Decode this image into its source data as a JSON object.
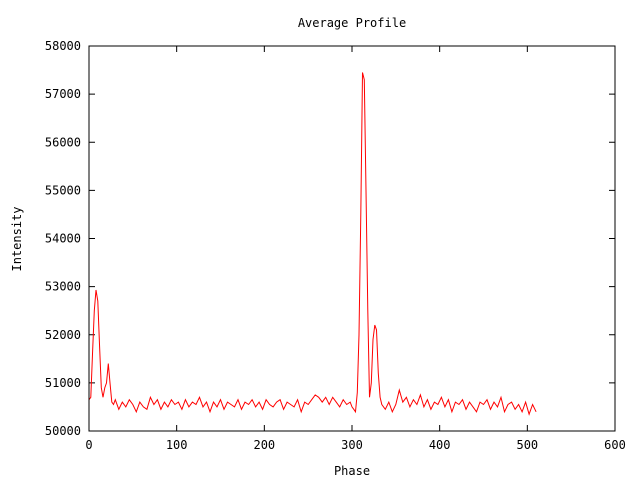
{
  "chart_data": {
    "type": "line",
    "title": "Average Profile",
    "xlabel": "Phase",
    "ylabel": "Intensity",
    "xlim": [
      0,
      600
    ],
    "ylim": [
      50000,
      58000
    ],
    "xticks": [
      0,
      100,
      200,
      300,
      400,
      500,
      600
    ],
    "yticks": [
      50000,
      51000,
      52000,
      53000,
      54000,
      55000,
      56000,
      57000,
      58000
    ],
    "grid": false,
    "legend": "none",
    "series": [
      {
        "name": "Average Profile",
        "color": "#ff0000",
        "points": [
          [
            0,
            50650
          ],
          [
            2,
            50700
          ],
          [
            4,
            51600
          ],
          [
            6,
            52500
          ],
          [
            8,
            52930
          ],
          [
            10,
            52700
          ],
          [
            12,
            51800
          ],
          [
            14,
            50900
          ],
          [
            16,
            50700
          ],
          [
            18,
            50900
          ],
          [
            20,
            51000
          ],
          [
            22,
            51400
          ],
          [
            24,
            51000
          ],
          [
            26,
            50600
          ],
          [
            28,
            50550
          ],
          [
            30,
            50650
          ],
          [
            34,
            50450
          ],
          [
            38,
            50600
          ],
          [
            42,
            50500
          ],
          [
            46,
            50650
          ],
          [
            50,
            50550
          ],
          [
            54,
            50400
          ],
          [
            58,
            50600
          ],
          [
            62,
            50500
          ],
          [
            66,
            50450
          ],
          [
            70,
            50700
          ],
          [
            74,
            50550
          ],
          [
            78,
            50650
          ],
          [
            82,
            50450
          ],
          [
            86,
            50600
          ],
          [
            90,
            50500
          ],
          [
            94,
            50650
          ],
          [
            98,
            50550
          ],
          [
            102,
            50600
          ],
          [
            106,
            50450
          ],
          [
            110,
            50650
          ],
          [
            114,
            50500
          ],
          [
            118,
            50600
          ],
          [
            122,
            50550
          ],
          [
            126,
            50700
          ],
          [
            130,
            50500
          ],
          [
            134,
            50600
          ],
          [
            138,
            50400
          ],
          [
            142,
            50600
          ],
          [
            146,
            50500
          ],
          [
            150,
            50650
          ],
          [
            154,
            50450
          ],
          [
            158,
            50600
          ],
          [
            162,
            50550
          ],
          [
            166,
            50500
          ],
          [
            170,
            50650
          ],
          [
            174,
            50450
          ],
          [
            178,
            50600
          ],
          [
            182,
            50550
          ],
          [
            186,
            50650
          ],
          [
            190,
            50500
          ],
          [
            194,
            50600
          ],
          [
            198,
            50450
          ],
          [
            202,
            50650
          ],
          [
            206,
            50550
          ],
          [
            210,
            50500
          ],
          [
            214,
            50600
          ],
          [
            218,
            50650
          ],
          [
            222,
            50450
          ],
          [
            226,
            50600
          ],
          [
            230,
            50550
          ],
          [
            234,
            50500
          ],
          [
            238,
            50650
          ],
          [
            242,
            50400
          ],
          [
            246,
            50600
          ],
          [
            250,
            50550
          ],
          [
            254,
            50650
          ],
          [
            258,
            50750
          ],
          [
            262,
            50700
          ],
          [
            266,
            50600
          ],
          [
            270,
            50700
          ],
          [
            274,
            50550
          ],
          [
            278,
            50700
          ],
          [
            282,
            50600
          ],
          [
            286,
            50500
          ],
          [
            290,
            50650
          ],
          [
            294,
            50550
          ],
          [
            298,
            50600
          ],
          [
            300,
            50500
          ],
          [
            302,
            50450
          ],
          [
            304,
            50400
          ],
          [
            306,
            50800
          ],
          [
            308,
            52000
          ],
          [
            310,
            54500
          ],
          [
            312,
            57450
          ],
          [
            314,
            57300
          ],
          [
            316,
            55000
          ],
          [
            318,
            52500
          ],
          [
            320,
            50700
          ],
          [
            322,
            51000
          ],
          [
            324,
            51900
          ],
          [
            326,
            52200
          ],
          [
            328,
            52100
          ],
          [
            330,
            51200
          ],
          [
            332,
            50700
          ],
          [
            334,
            50550
          ],
          [
            338,
            50450
          ],
          [
            342,
            50600
          ],
          [
            346,
            50400
          ],
          [
            350,
            50550
          ],
          [
            354,
            50850
          ],
          [
            358,
            50600
          ],
          [
            362,
            50700
          ],
          [
            366,
            50500
          ],
          [
            370,
            50650
          ],
          [
            374,
            50550
          ],
          [
            378,
            50750
          ],
          [
            382,
            50500
          ],
          [
            386,
            50650
          ],
          [
            390,
            50450
          ],
          [
            394,
            50600
          ],
          [
            398,
            50550
          ],
          [
            402,
            50700
          ],
          [
            406,
            50500
          ],
          [
            410,
            50650
          ],
          [
            414,
            50400
          ],
          [
            418,
            50600
          ],
          [
            422,
            50550
          ],
          [
            426,
            50650
          ],
          [
            430,
            50450
          ],
          [
            434,
            50600
          ],
          [
            438,
            50500
          ],
          [
            442,
            50400
          ],
          [
            446,
            50600
          ],
          [
            450,
            50550
          ],
          [
            454,
            50650
          ],
          [
            458,
            50450
          ],
          [
            462,
            50600
          ],
          [
            466,
            50500
          ],
          [
            470,
            50700
          ],
          [
            474,
            50400
          ],
          [
            478,
            50550
          ],
          [
            482,
            50600
          ],
          [
            486,
            50450
          ],
          [
            490,
            50550
          ],
          [
            494,
            50400
          ],
          [
            498,
            50600
          ],
          [
            502,
            50350
          ],
          [
            506,
            50550
          ],
          [
            510,
            50400
          ]
        ]
      }
    ]
  }
}
